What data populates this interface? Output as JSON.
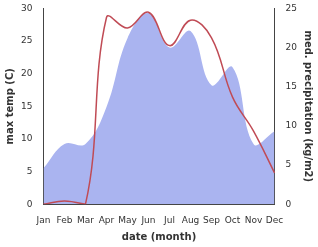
{
  "chart_data": {
    "type": "line",
    "xlabel": "date (month)",
    "ylabel": "max temp (C)",
    "y2label": "med. precipitation (kg/m2)",
    "categories": [
      "Jan",
      "Feb",
      "Mar",
      "Apr",
      "May",
      "Jun",
      "Jul",
      "Aug",
      "Sep",
      "Oct",
      "Nov",
      "Dec"
    ],
    "series": [
      {
        "type": "line",
        "color": "#c04b55",
        "values": [
          0.0,
          0.5,
          0.0,
          28.6,
          27.0,
          29.4,
          24.3,
          28.2,
          25.5,
          16.4,
          11.2,
          4.8
        ]
      },
      {
        "type": "area",
        "axis": "y2",
        "color": "#aab4f0",
        "values": [
          4.6,
          7.7,
          7.7,
          12.4,
          21.2,
          24.4,
          20.0,
          22.1,
          15.2,
          17.5,
          7.7,
          9.3
        ]
      }
    ],
    "ylim": [
      0,
      30
    ],
    "yticks": [
      0,
      5,
      10,
      15,
      20,
      25,
      30
    ],
    "y2lim": [
      0,
      25
    ],
    "y2ticks": [
      0,
      5,
      10,
      15,
      20,
      25
    ],
    "grid": false
  }
}
